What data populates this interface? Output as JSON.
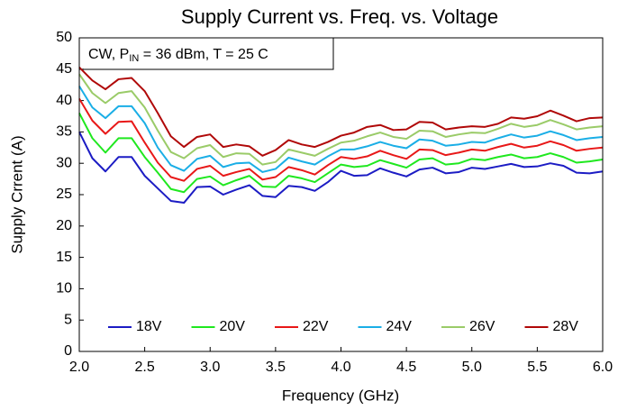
{
  "chart_data": {
    "type": "line",
    "title": "Supply Current vs. Freq. vs. Voltage",
    "annotation": [
      "CW, P",
      "IN",
      " = 36 dBm, T = 25 C"
    ],
    "xlabel": "Frequency (GHz)",
    "ylabel": "Supply Crrent (A)",
    "x": [
      2,
      2.1,
      2.2,
      2.3,
      2.4,
      2.5,
      2.6,
      2.7,
      2.8,
      2.9,
      3,
      3.1,
      3.2,
      3.3,
      3.4,
      3.5,
      3.6,
      3.7,
      3.8,
      3.9,
      4,
      4.1,
      4.2,
      4.3,
      4.4,
      4.5,
      4.6,
      4.7,
      4.8,
      4.9,
      5,
      5.1,
      5.2,
      5.3,
      5.4,
      5.5,
      5.6,
      5.7,
      5.8,
      5.9,
      6
    ],
    "series": [
      {
        "name": "18V",
        "color": "#1c1cc4",
        "values": [
          35,
          30.8,
          28.7,
          31,
          31,
          28,
          26,
          24,
          23.7,
          26.2,
          26.3,
          25,
          25.8,
          26.5,
          24.8,
          24.6,
          26.4,
          26.2,
          25.6,
          27,
          28.8,
          28,
          28.1,
          29.2,
          28.5,
          27.9,
          29,
          29.3,
          28.4,
          28.6,
          29.3,
          29.1,
          29.5,
          29.9,
          29.4,
          29.5,
          30,
          29.6,
          28.5,
          28.4,
          28.7
        ]
      },
      {
        "name": "20V",
        "color": "#1fe81f",
        "values": [
          38,
          34,
          31.7,
          34,
          34,
          31,
          28.5,
          25.9,
          25.4,
          27.5,
          27.9,
          26.5,
          27.3,
          28,
          26.3,
          26.2,
          28,
          27.6,
          27,
          28.4,
          29.8,
          29.4,
          29.6,
          30.5,
          29.9,
          29.3,
          30.6,
          30.8,
          29.8,
          30,
          30.7,
          30.5,
          31,
          31.4,
          30.8,
          31,
          31.6,
          31,
          30.1,
          30.3,
          30.6
        ]
      },
      {
        "name": "22V",
        "color": "#e81818",
        "values": [
          40.3,
          36.8,
          34.7,
          36.6,
          36.7,
          33.3,
          30.1,
          27.8,
          27.2,
          29.1,
          29.6,
          28,
          28.6,
          29.1,
          27.4,
          27.8,
          29.4,
          28.9,
          28.2,
          29.7,
          31,
          30.7,
          31.1,
          32,
          31.3,
          30.7,
          32.2,
          32.1,
          31.3,
          31.7,
          32.2,
          32,
          32.6,
          33.1,
          32.5,
          32.8,
          33.5,
          32.9,
          32,
          32.3,
          32.5
        ]
      },
      {
        "name": "24V",
        "color": "#1aaee6",
        "values": [
          42.3,
          38.9,
          37.2,
          39.1,
          39.1,
          36.4,
          32.5,
          29.7,
          28.8,
          30.7,
          31.2,
          29.4,
          30,
          30.1,
          28.6,
          29.1,
          30.9,
          30.3,
          29.8,
          31.1,
          32.2,
          32.2,
          32.7,
          33.4,
          32.8,
          32.4,
          33.8,
          33.6,
          32.8,
          33,
          33.4,
          33.3,
          34,
          34.6,
          34.1,
          34.4,
          35.1,
          34.5,
          33.7,
          34,
          34.2
        ]
      },
      {
        "name": "26V",
        "color": "#9acb68",
        "values": [
          44.2,
          41.2,
          39.6,
          41.2,
          41.5,
          38.9,
          35.2,
          31.8,
          30.8,
          32.4,
          32.9,
          31,
          31.6,
          31.5,
          29.8,
          30.2,
          32.2,
          31.7,
          31.2,
          32.3,
          33.3,
          33.6,
          34.3,
          34.9,
          34.2,
          33.9,
          35.2,
          35.1,
          34.2,
          34.6,
          34.9,
          34.8,
          35.5,
          36.3,
          35.8,
          36.1,
          36.9,
          36.2,
          35.4,
          35.7,
          35.9
        ]
      },
      {
        "name": "28V",
        "color": "#b00808",
        "values": [
          45.3,
          43.2,
          41.8,
          43.4,
          43.6,
          41.5,
          38,
          34.3,
          32.6,
          34.2,
          34.6,
          32.6,
          33,
          32.7,
          31.2,
          32.1,
          33.7,
          33,
          32.6,
          33.4,
          34.4,
          34.9,
          35.8,
          36.1,
          35.3,
          35.4,
          36.6,
          36.5,
          35.4,
          35.7,
          35.9,
          35.8,
          36.3,
          37.3,
          37.1,
          37.5,
          38.4,
          37.6,
          36.7,
          37.2,
          37.3
        ]
      }
    ],
    "xlim": [
      2,
      6
    ],
    "xticks": [
      {
        "value": 2,
        "label": "2.0"
      },
      2.5,
      {
        "value": 3,
        "label": "3.0"
      },
      3.5,
      {
        "value": 4,
        "label": "4.0"
      },
      4.5,
      {
        "value": 5,
        "label": "5.0"
      },
      5.5,
      {
        "value": 6,
        "label": "6.0"
      }
    ],
    "ylim": [
      0,
      50
    ],
    "yticks": [
      0,
      5,
      10,
      15,
      20,
      25,
      30,
      35,
      40,
      45,
      50
    ],
    "legend": "bottom"
  }
}
